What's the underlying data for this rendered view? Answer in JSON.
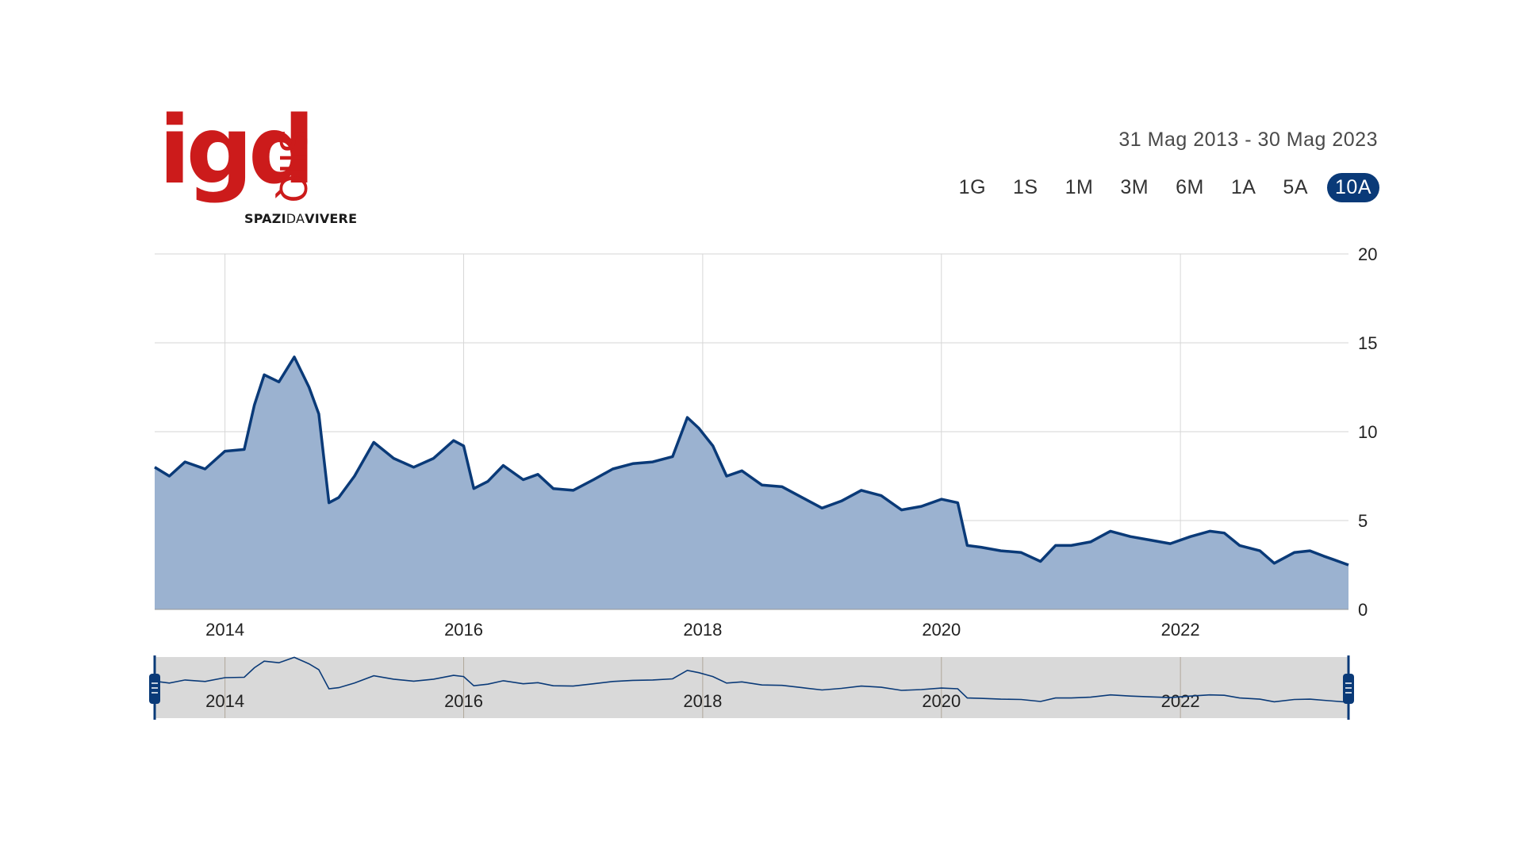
{
  "brand": {
    "logo_word": "igd",
    "logo_siiq": "SIIQ",
    "tagline_1": "SPAZI",
    "tagline_2": "DA",
    "tagline_3": "VIVERE",
    "logo_color": "#cc1b1b"
  },
  "date_range": "31 Mag 2013 - 30 Mag 2023",
  "range_buttons": [
    "1G",
    "1S",
    "1M",
    "3M",
    "6M",
    "1A",
    "5A",
    "10A"
  ],
  "active_range": "10A",
  "colors": {
    "line": "#0a3a78",
    "area": "#9bb2d0",
    "grid": "#d6d6d6",
    "navigator_bg": "#d9d9d9",
    "button_active": "#0a3a78"
  },
  "chart_data": {
    "type": "area",
    "ylim": [
      0,
      20
    ],
    "y_ticks": [
      "0",
      "5",
      "10",
      "15",
      "20"
    ],
    "y_axis_side": "right",
    "x_ticks": [
      "2014",
      "2016",
      "2018",
      "2020",
      "2022"
    ],
    "x_range": [
      "2013-05-31",
      "2023-05-30"
    ],
    "grid": true,
    "series": [
      {
        "values": [
          [
            "2013-05-31",
            8.0
          ],
          [
            "2013-07-15",
            7.5
          ],
          [
            "2013-09-01",
            8.3
          ],
          [
            "2013-11-01",
            7.9
          ],
          [
            "2014-01-01",
            8.9
          ],
          [
            "2014-03-01",
            9.0
          ],
          [
            "2014-04-01",
            11.5
          ],
          [
            "2014-05-01",
            13.2
          ],
          [
            "2014-06-15",
            12.8
          ],
          [
            "2014-08-01",
            14.2
          ],
          [
            "2014-09-15",
            12.5
          ],
          [
            "2014-10-15",
            11.0
          ],
          [
            "2014-11-15",
            6.0
          ],
          [
            "2014-12-15",
            6.3
          ],
          [
            "2015-02-01",
            7.5
          ],
          [
            "2015-04-01",
            9.4
          ],
          [
            "2015-06-01",
            8.5
          ],
          [
            "2015-08-01",
            8.0
          ],
          [
            "2015-10-01",
            8.5
          ],
          [
            "2015-12-01",
            9.5
          ],
          [
            "2016-01-01",
            9.2
          ],
          [
            "2016-02-01",
            6.8
          ],
          [
            "2016-03-15",
            7.2
          ],
          [
            "2016-05-01",
            8.1
          ],
          [
            "2016-07-01",
            7.3
          ],
          [
            "2016-08-15",
            7.6
          ],
          [
            "2016-10-01",
            6.8
          ],
          [
            "2016-12-01",
            6.7
          ],
          [
            "2017-02-01",
            7.3
          ],
          [
            "2017-04-01",
            7.9
          ],
          [
            "2017-06-01",
            8.2
          ],
          [
            "2017-08-01",
            8.3
          ],
          [
            "2017-10-01",
            8.6
          ],
          [
            "2017-11-15",
            10.8
          ],
          [
            "2017-12-20",
            10.2
          ],
          [
            "2018-02-01",
            9.2
          ],
          [
            "2018-03-15",
            7.5
          ],
          [
            "2018-05-01",
            7.8
          ],
          [
            "2018-07-01",
            7.0
          ],
          [
            "2018-09-01",
            6.9
          ],
          [
            "2018-11-01",
            6.3
          ],
          [
            "2019-01-01",
            5.7
          ],
          [
            "2019-03-01",
            6.1
          ],
          [
            "2019-05-01",
            6.7
          ],
          [
            "2019-07-01",
            6.4
          ],
          [
            "2019-09-01",
            5.6
          ],
          [
            "2019-11-01",
            5.8
          ],
          [
            "2020-01-01",
            6.2
          ],
          [
            "2020-02-20",
            6.0
          ],
          [
            "2020-03-20",
            3.6
          ],
          [
            "2020-05-01",
            3.5
          ],
          [
            "2020-07-01",
            3.3
          ],
          [
            "2020-09-01",
            3.2
          ],
          [
            "2020-10-30",
            2.7
          ],
          [
            "2020-12-15",
            3.6
          ],
          [
            "2021-02-01",
            3.6
          ],
          [
            "2021-04-01",
            3.8
          ],
          [
            "2021-06-01",
            4.4
          ],
          [
            "2021-08-01",
            4.1
          ],
          [
            "2021-10-01",
            3.9
          ],
          [
            "2021-12-01",
            3.7
          ],
          [
            "2022-02-01",
            4.1
          ],
          [
            "2022-04-01",
            4.4
          ],
          [
            "2022-05-15",
            4.3
          ],
          [
            "2022-07-01",
            3.6
          ],
          [
            "2022-09-01",
            3.3
          ],
          [
            "2022-10-15",
            2.6
          ],
          [
            "2022-12-15",
            3.2
          ],
          [
            "2023-02-01",
            3.3
          ],
          [
            "2023-03-15",
            3.0
          ],
          [
            "2023-04-15",
            2.8
          ],
          [
            "2023-05-30",
            2.5
          ]
        ]
      }
    ]
  }
}
